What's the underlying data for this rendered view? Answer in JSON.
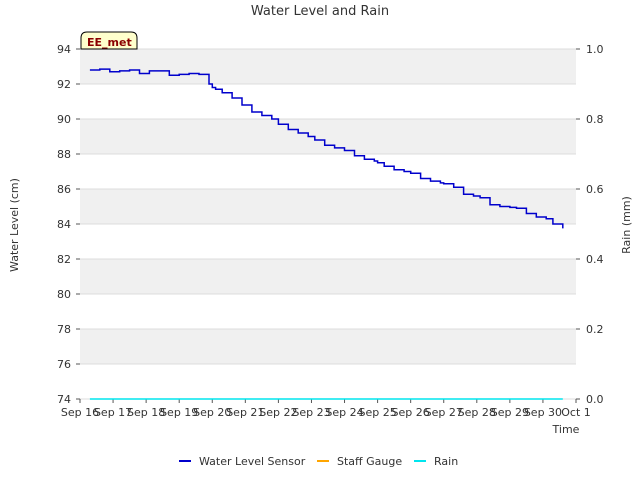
{
  "chart_data": {
    "type": "line",
    "title": "Water Level and Rain",
    "xlabel": "Time",
    "ylabel": "Water Level (cm)",
    "y2label": "Rain (mm)",
    "badge": "EE_met",
    "xlim": [
      0,
      15
    ],
    "ylim": [
      74,
      94
    ],
    "y2lim": [
      0.0,
      1.0
    ],
    "x_ticks": [
      0,
      1,
      2,
      3,
      4,
      5,
      6,
      7,
      8,
      9,
      10,
      11,
      12,
      13,
      14,
      15
    ],
    "x_tick_labels": [
      "Sep 16",
      "Sep 17",
      "Sep 18",
      "Sep 19",
      "Sep 20",
      "Sep 21",
      "Sep 22",
      "Sep 23",
      "Sep 24",
      "Sep 25",
      "Sep 26",
      "Sep 27",
      "Sep 28",
      "Sep 29",
      "Sep 30",
      "Oct 1"
    ],
    "y_ticks": [
      74,
      76,
      78,
      80,
      82,
      84,
      86,
      88,
      90,
      92,
      94
    ],
    "y_tick_labels": [
      "74",
      "76",
      "78",
      "80",
      "82",
      "84",
      "86",
      "88",
      "90",
      "92",
      "94"
    ],
    "y2_ticks": [
      0.0,
      0.2,
      0.4,
      0.6,
      0.8,
      1.0
    ],
    "y2_tick_labels": [
      "0.0",
      "0.2",
      "0.4",
      "0.6",
      "0.8",
      "1.0"
    ],
    "series": [
      {
        "name": "Water Level Sensor",
        "color": "#0000cc",
        "axis": "left",
        "x": [
          0.3,
          0.6,
          0.9,
          1.2,
          1.5,
          1.8,
          2.1,
          2.4,
          2.7,
          3.0,
          3.3,
          3.6,
          3.9,
          4.0,
          4.1,
          4.3,
          4.6,
          4.9,
          5.2,
          5.5,
          5.8,
          6.0,
          6.3,
          6.6,
          6.9,
          7.1,
          7.4,
          7.7,
          8.0,
          8.3,
          8.6,
          8.9,
          9.0,
          9.2,
          9.5,
          9.8,
          10.0,
          10.3,
          10.6,
          10.9,
          11.0,
          11.3,
          11.6,
          11.9,
          12.1,
          12.4,
          12.7,
          13.0,
          13.2,
          13.5,
          13.8,
          14.1,
          14.3
        ],
        "values": [
          92.8,
          92.85,
          92.7,
          92.75,
          92.8,
          92.6,
          92.75,
          92.75,
          92.5,
          92.55,
          92.6,
          92.55,
          92.0,
          91.8,
          91.7,
          91.5,
          91.2,
          90.8,
          90.4,
          90.2,
          90.0,
          89.7,
          89.4,
          89.2,
          89.0,
          88.8,
          88.5,
          88.35,
          88.2,
          87.9,
          87.7,
          87.6,
          87.5,
          87.3,
          87.1,
          87.0,
          86.9,
          86.6,
          86.45,
          86.35,
          86.3,
          86.1,
          85.7,
          85.6,
          85.5,
          85.1,
          85.0,
          84.95,
          84.9,
          84.6,
          84.4,
          84.3,
          84.0
        ],
        "tail": [
          [
            14.6,
            83.75
          ]
        ]
      },
      {
        "name": "Staff Gauge",
        "color": "#ffa500",
        "axis": "left",
        "x": [],
        "values": []
      },
      {
        "name": "Rain",
        "color": "#00e5ee",
        "axis": "right",
        "x": [
          0.3,
          14.6
        ],
        "values": [
          0.0,
          0.0
        ]
      }
    ]
  }
}
